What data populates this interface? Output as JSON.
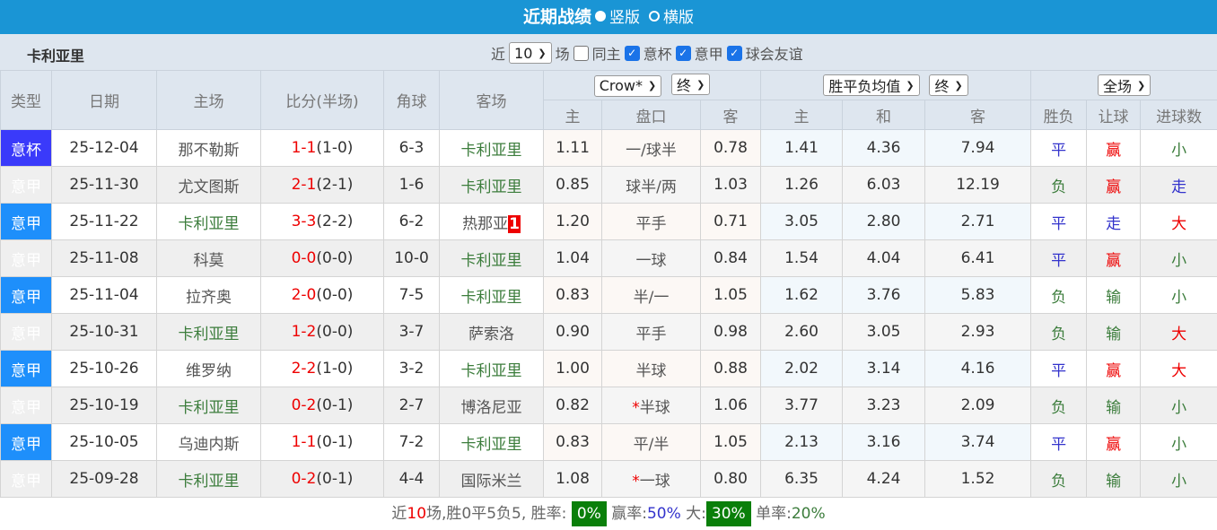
{
  "title": {
    "text": "近期战绩",
    "opt1": "竖版",
    "opt2": "横版"
  },
  "filter": {
    "team": "卡利亚里",
    "near": "近",
    "count": "10",
    "field": "场",
    "same_home": "同主",
    "c1": "意杯",
    "c2": "意甲",
    "c3": "球会友谊"
  },
  "headers": {
    "type": "类型",
    "date": "日期",
    "home": "主场",
    "score": "比分(半场)",
    "corner": "角球",
    "away": "客场",
    "company": "Crow*",
    "final1": "终",
    "avg": "胜平负均值",
    "final2": "终",
    "scope": "全场",
    "h_home": "主",
    "h_line": "盘口",
    "h_away": "客",
    "o_home": "主",
    "o_draw": "和",
    "o_away": "客",
    "r_wl": "胜负",
    "r_hc": "让球",
    "r_goals": "进球数"
  },
  "rows": [
    {
      "type": "意杯",
      "date": "25-12-04",
      "home": "那不勒斯",
      "ft": "1-1",
      "ht": "(1-0)",
      "corner": "6-3",
      "away": "卡利亚里",
      "red_card": "",
      "h1": "1.11",
      "line": "一/球半",
      "h2": "0.78",
      "o1": "1.41",
      "o2": "4.36",
      "o3": "7.94",
      "wl": "平",
      "hc": "赢",
      "goals": "小"
    },
    {
      "type": "意甲",
      "date": "25-11-30",
      "home": "尤文图斯",
      "ft": "2-1",
      "ht": "(2-1)",
      "corner": "1-6",
      "away": "卡利亚里",
      "red_card": "",
      "h1": "0.85",
      "line": "球半/两",
      "h2": "1.03",
      "o1": "1.26",
      "o2": "6.03",
      "o3": "12.19",
      "wl": "负",
      "hc": "赢",
      "goals": "走"
    },
    {
      "type": "意甲",
      "date": "25-11-22",
      "home": "卡利亚里",
      "ft": "3-3",
      "ht": "(2-2)",
      "corner": "6-2",
      "away": "热那亚",
      "red_card": "1",
      "h1": "1.20",
      "line": "平手",
      "h2": "0.71",
      "o1": "3.05",
      "o2": "2.80",
      "o3": "2.71",
      "wl": "平",
      "hc": "走",
      "goals": "大"
    },
    {
      "type": "意甲",
      "date": "25-11-08",
      "home": "科莫",
      "ft": "0-0",
      "ht": "(0-0)",
      "corner": "10-0",
      "away": "卡利亚里",
      "red_card": "",
      "h1": "1.04",
      "line": "一球",
      "h2": "0.84",
      "o1": "1.54",
      "o2": "4.04",
      "o3": "6.41",
      "wl": "平",
      "hc": "赢",
      "goals": "小"
    },
    {
      "type": "意甲",
      "date": "25-11-04",
      "home": "拉齐奥",
      "ft": "2-0",
      "ht": "(0-0)",
      "corner": "7-5",
      "away": "卡利亚里",
      "red_card": "",
      "h1": "0.83",
      "line": "半/一",
      "h2": "1.05",
      "o1": "1.62",
      "o2": "3.76",
      "o3": "5.83",
      "wl": "负",
      "hc": "输",
      "goals": "小"
    },
    {
      "type": "意甲",
      "date": "25-10-31",
      "home": "卡利亚里",
      "ft": "1-2",
      "ht": "(0-0)",
      "corner": "3-7",
      "away": "萨索洛",
      "red_card": "",
      "h1": "0.90",
      "line": "平手",
      "h2": "0.98",
      "o1": "2.60",
      "o2": "3.05",
      "o3": "2.93",
      "wl": "负",
      "hc": "输",
      "goals": "大"
    },
    {
      "type": "意甲",
      "date": "25-10-26",
      "home": "维罗纳",
      "ft": "2-2",
      "ht": "(1-0)",
      "corner": "3-2",
      "away": "卡利亚里",
      "red_card": "",
      "h1": "1.00",
      "line": "半球",
      "h2": "0.88",
      "o1": "2.02",
      "o2": "3.14",
      "o3": "4.16",
      "wl": "平",
      "hc": "赢",
      "goals": "大"
    },
    {
      "type": "意甲",
      "date": "25-10-19",
      "home": "卡利亚里",
      "ft": "0-2",
      "ht": "(0-1)",
      "corner": "2-7",
      "away": "博洛尼亚",
      "red_card": "",
      "h1": "0.82",
      "line_star": "*",
      "line": "半球",
      "h2": "1.06",
      "o1": "3.77",
      "o2": "3.23",
      "o3": "2.09",
      "wl": "负",
      "hc": "输",
      "goals": "小"
    },
    {
      "type": "意甲",
      "date": "25-10-05",
      "home": "乌迪内斯",
      "ft": "1-1",
      "ht": "(0-1)",
      "corner": "7-2",
      "away": "卡利亚里",
      "red_card": "",
      "h1": "0.83",
      "line": "平/半",
      "h2": "1.05",
      "o1": "2.13",
      "o2": "3.16",
      "o3": "3.74",
      "wl": "平",
      "hc": "赢",
      "goals": "小"
    },
    {
      "type": "意甲",
      "date": "25-09-28",
      "home": "卡利亚里",
      "ft": "0-2",
      "ht": "(0-1)",
      "corner": "4-4",
      "away": "国际米兰",
      "red_card": "",
      "h1": "1.08",
      "line_star": "*",
      "line": "一球",
      "h2": "0.80",
      "o1": "6.35",
      "o2": "4.24",
      "o3": "1.52",
      "wl": "负",
      "hc": "输",
      "goals": "小"
    }
  ],
  "footer": {
    "p1": "近",
    "n": "10",
    "p2": "场,胜0平5负5, 胜率:",
    "win_rate": "0%",
    "p3": "赢率:",
    "hc_rate": "50%",
    "p4": "大:",
    "big_rate": "30%",
    "p5": "单率:",
    "odd_rate": "20%"
  },
  "colors": {
    "title_bg": "#1a95d5",
    "type_cup": "#3a3afa",
    "type_league": "#1e8ffb",
    "team_highlight": "#3c7d3c"
  }
}
